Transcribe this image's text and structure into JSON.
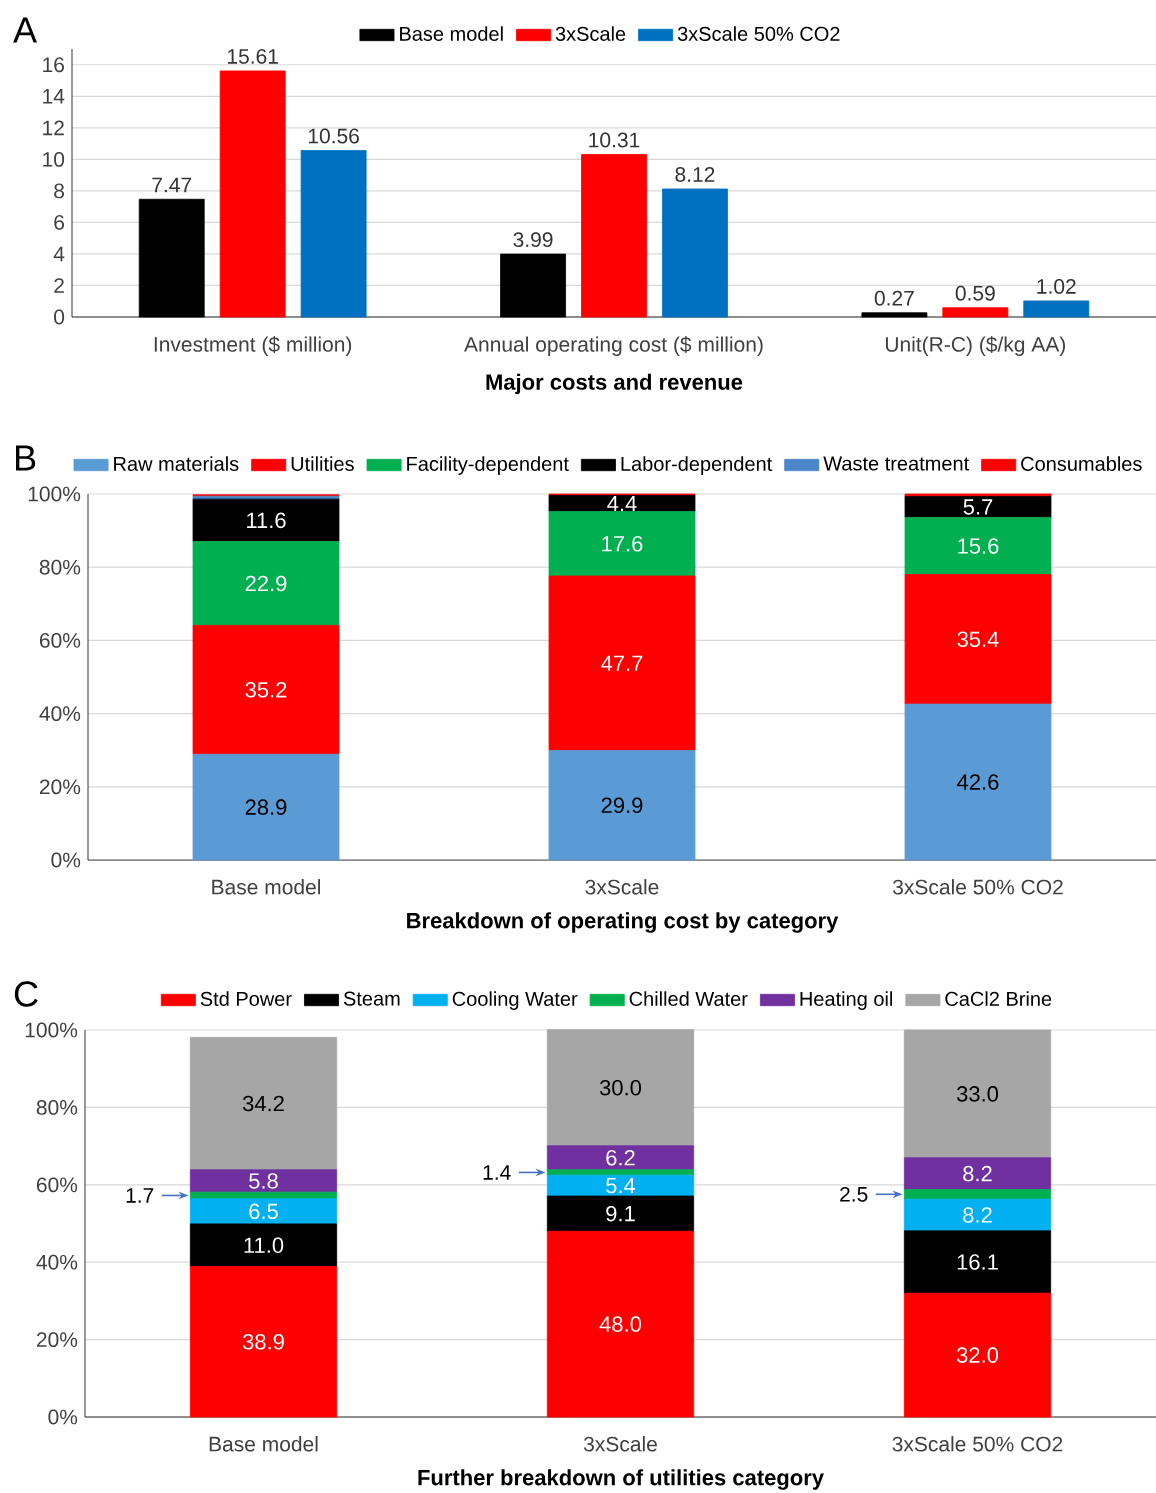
{
  "chart_data": [
    {
      "type": "bar",
      "annotations": [
        "A"
      ],
      "xlabel": "Major costs and revenue",
      "categories": [
        "Investment ($ million)",
        "Annual operating cost ($ million)",
        "Unit(R-C) ($/kg AA)"
      ],
      "series": [
        {
          "name": "Base model",
          "color": "#000000",
          "values": [
            7.47,
            3.99,
            0.27
          ]
        },
        {
          "name": "3xScale",
          "color": "#ff0000",
          "values": [
            15.61,
            10.31,
            0.59
          ]
        },
        {
          "name": "3xScale 50% CO2",
          "color": "#0070c0",
          "values": [
            10.56,
            8.12,
            1.02
          ]
        }
      ],
      "ylim": [
        0,
        17
      ],
      "yticks": [
        0,
        2,
        4,
        6,
        8,
        10,
        12,
        14,
        16
      ],
      "grid": "y",
      "legend": "top",
      "data_labels": true
    },
    {
      "type": "bar",
      "stacked": true,
      "annotations": [
        "B"
      ],
      "xlabel": "Breakdown of operating cost by category",
      "categories": [
        "Base model",
        "3xScale",
        "3xScale 50% CO2"
      ],
      "series": [
        {
          "name": "Raw materials",
          "color": "#5b9bd5",
          "values": [
            28.9,
            29.9,
            42.6
          ],
          "value_labels": [
            "28.9",
            "29.9",
            "42.6"
          ]
        },
        {
          "name": "Utilities",
          "color": "#ff0000",
          "values": [
            35.2,
            47.7,
            35.4
          ],
          "value_labels": [
            "35.2",
            "47.7",
            "35.4"
          ]
        },
        {
          "name": "Facility-dependent",
          "color": "#00b050",
          "values": [
            22.9,
            17.6,
            15.6
          ],
          "value_labels": [
            "22.9",
            "17.6",
            "15.6"
          ]
        },
        {
          "name": "Labor-dependent",
          "color": "#000000",
          "values": [
            11.6,
            4.4,
            5.7
          ],
          "value_labels": [
            "11.6",
            "4.4",
            "5.7"
          ]
        },
        {
          "name": "Waste treatment",
          "color": "#4a86c8",
          "values": [
            0.8,
            0,
            0
          ],
          "value_labels": [
            null,
            null,
            null
          ]
        },
        {
          "name": "Consumables",
          "color": "#ff0000",
          "values": [
            0.4,
            0.4,
            0.7
          ],
          "value_labels": [
            null,
            null,
            null
          ]
        }
      ],
      "ylim": [
        0,
        100
      ],
      "yticks": [
        {
          "value": 0,
          "label": "0%"
        },
        {
          "value": 20,
          "label": "20%"
        },
        {
          "value": 40,
          "label": "40%"
        },
        {
          "value": 60,
          "label": "60%"
        },
        {
          "value": 80,
          "label": "80%"
        },
        {
          "value": 100,
          "label": "100%"
        }
      ],
      "grid": "y",
      "legend": "top"
    },
    {
      "type": "bar",
      "stacked": true,
      "annotations": [
        "C"
      ],
      "xlabel": "Further breakdown of utilities category",
      "categories": [
        "Base model",
        "3xScale",
        "3xScale 50% CO2"
      ],
      "series": [
        {
          "name": "Std Power",
          "color": "#ff0000",
          "values": [
            38.9,
            48.0,
            32.0
          ],
          "value_labels": [
            "38.9",
            "48.0",
            "32.0"
          ]
        },
        {
          "name": "Steam",
          "color": "#000000",
          "values": [
            11.0,
            9.1,
            16.1
          ],
          "value_labels": [
            "11.0",
            "9.1",
            "16.1"
          ]
        },
        {
          "name": "Cooling Water",
          "color": "#00b0f0",
          "values": [
            6.5,
            5.4,
            8.2
          ],
          "value_labels": [
            "6.5",
            "5.4",
            "8.2"
          ]
        },
        {
          "name": "Chilled Water",
          "color": "#00b050",
          "values": [
            1.7,
            1.4,
            2.5
          ],
          "value_labels": [
            "1.7",
            "1.4",
            "2.5"
          ]
        },
        {
          "name": "Heating oil",
          "color": "#7030a0",
          "values": [
            5.8,
            6.2,
            8.2
          ],
          "value_labels": [
            "5.8",
            "6.2",
            "8.2"
          ]
        },
        {
          "name": "CaCl2 Brine",
          "color": "#a6a6a6",
          "values": [
            34.2,
            30.0,
            33.0
          ],
          "value_labels": [
            "34.2",
            "30.0",
            "33.0"
          ]
        }
      ],
      "ylim": [
        0,
        100
      ],
      "yticks": [
        {
          "value": 0,
          "label": "0%"
        },
        {
          "value": 20,
          "label": "20%"
        },
        {
          "value": 40,
          "label": "40%"
        },
        {
          "value": 60,
          "label": "60%"
        },
        {
          "value": 80,
          "label": "80%"
        },
        {
          "value": 100,
          "label": "100%"
        }
      ],
      "grid": "y",
      "legend": "top"
    }
  ]
}
